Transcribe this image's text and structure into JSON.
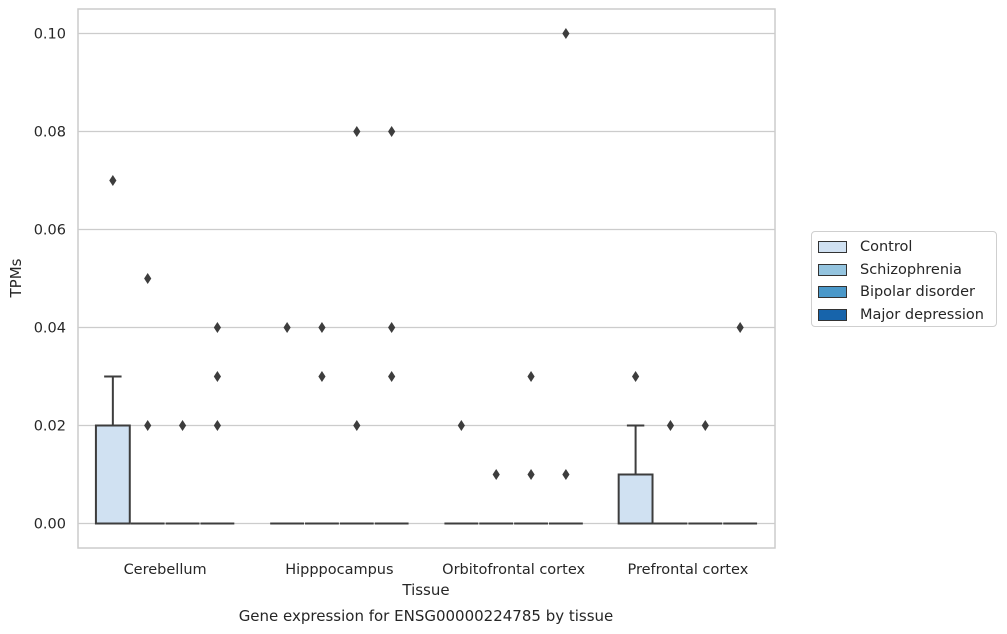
{
  "chart_data": {
    "type": "box",
    "title": "",
    "caption": "Gene expression for ENSG00000224785 by tissue",
    "xlabel": "Tissue",
    "ylabel": "TPMs",
    "ylim": [
      -0.005,
      0.105
    ],
    "yticks": [
      0.0,
      0.02,
      0.04,
      0.06,
      0.08,
      0.1
    ],
    "ytick_labels": [
      "0.00",
      "0.02",
      "0.04",
      "0.06",
      "0.08",
      "0.10"
    ],
    "categories": [
      "Cerebellum",
      "Hipppocampus",
      "Orbitofrontal cortex",
      "Prefrontal cortex"
    ],
    "grid": true,
    "legend_position": "right",
    "series": [
      {
        "name": "Control",
        "color": "#d0e1f2",
        "boxes": [
          {
            "q1": 0.0,
            "median": 0.0,
            "q3": 0.02,
            "whisker_low": 0.0,
            "whisker_high": 0.03,
            "outliers": [
              0.07
            ]
          },
          {
            "q1": 0.0,
            "median": 0.0,
            "q3": 0.0,
            "whisker_low": 0.0,
            "whisker_high": 0.0,
            "outliers": [
              0.04
            ]
          },
          {
            "q1": 0.0,
            "median": 0.0,
            "q3": 0.0,
            "whisker_low": 0.0,
            "whisker_high": 0.0,
            "outliers": [
              0.02
            ]
          },
          {
            "q1": 0.0,
            "median": 0.0,
            "q3": 0.01,
            "whisker_low": 0.0,
            "whisker_high": 0.02,
            "outliers": [
              0.03
            ]
          }
        ]
      },
      {
        "name": "Schizophrenia",
        "color": "#94c4df",
        "boxes": [
          {
            "q1": 0.0,
            "median": 0.0,
            "q3": 0.0,
            "whisker_low": 0.0,
            "whisker_high": 0.0,
            "outliers": [
              0.05,
              0.02
            ]
          },
          {
            "q1": 0.0,
            "median": 0.0,
            "q3": 0.0,
            "whisker_low": 0.0,
            "whisker_high": 0.0,
            "outliers": [
              0.04,
              0.03
            ]
          },
          {
            "q1": 0.0,
            "median": 0.0,
            "q3": 0.0,
            "whisker_low": 0.0,
            "whisker_high": 0.0,
            "outliers": [
              0.01
            ]
          },
          {
            "q1": 0.0,
            "median": 0.0,
            "q3": 0.0,
            "whisker_low": 0.0,
            "whisker_high": 0.0,
            "outliers": [
              0.02
            ]
          }
        ]
      },
      {
        "name": "Bipolar disorder",
        "color": "#4a98c9",
        "boxes": [
          {
            "q1": 0.0,
            "median": 0.0,
            "q3": 0.0,
            "whisker_low": 0.0,
            "whisker_high": 0.0,
            "outliers": [
              0.02
            ]
          },
          {
            "q1": 0.0,
            "median": 0.0,
            "q3": 0.0,
            "whisker_low": 0.0,
            "whisker_high": 0.0,
            "outliers": [
              0.08,
              0.02
            ]
          },
          {
            "q1": 0.0,
            "median": 0.0,
            "q3": 0.0,
            "whisker_low": 0.0,
            "whisker_high": 0.0,
            "outliers": [
              0.03,
              0.01
            ]
          },
          {
            "q1": 0.0,
            "median": 0.0,
            "q3": 0.0,
            "whisker_low": 0.0,
            "whisker_high": 0.0,
            "outliers": [
              0.02
            ]
          }
        ]
      },
      {
        "name": "Major depression",
        "color": "#1764ab",
        "boxes": [
          {
            "q1": 0.0,
            "median": 0.0,
            "q3": 0.0,
            "whisker_low": 0.0,
            "whisker_high": 0.0,
            "outliers": [
              0.04,
              0.03,
              0.02
            ]
          },
          {
            "q1": 0.0,
            "median": 0.0,
            "q3": 0.0,
            "whisker_low": 0.0,
            "whisker_high": 0.0,
            "outliers": [
              0.08,
              0.04,
              0.03
            ]
          },
          {
            "q1": 0.0,
            "median": 0.0,
            "q3": 0.0,
            "whisker_low": 0.0,
            "whisker_high": 0.0,
            "outliers": [
              0.1,
              0.01
            ]
          },
          {
            "q1": 0.0,
            "median": 0.0,
            "q3": 0.0,
            "whisker_low": 0.0,
            "whisker_high": 0.0,
            "outliers": [
              0.04
            ]
          }
        ]
      }
    ]
  }
}
